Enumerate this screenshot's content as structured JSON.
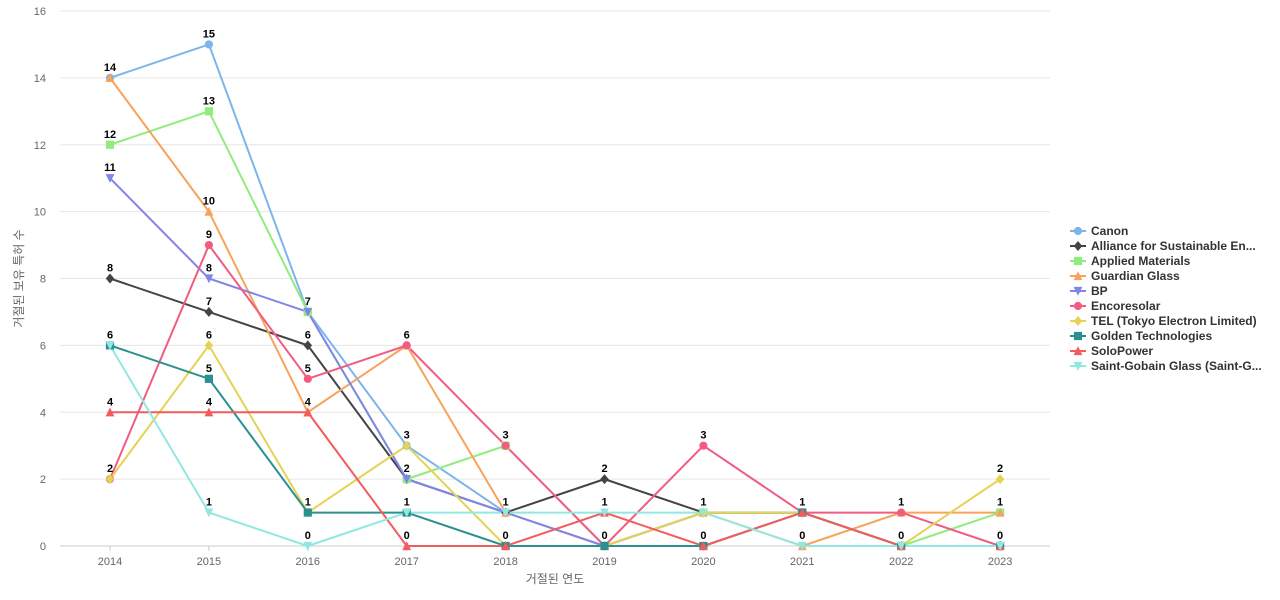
{
  "chart_data": {
    "type": "line",
    "title": "",
    "xlabel": "거절된 연도",
    "ylabel": "거절된 보유 특허 수",
    "x": [
      "2014",
      "2015",
      "2016",
      "2017",
      "2018",
      "2019",
      "2020",
      "2021",
      "2022",
      "2023"
    ],
    "ylim": [
      0,
      16
    ],
    "yticks": [
      0,
      2,
      4,
      6,
      8,
      10,
      12,
      14,
      16
    ],
    "grid": true,
    "legend_position": "right",
    "data_labels": true,
    "series": [
      {
        "name": "Canon",
        "color": "#7cb5ec",
        "marker": "circle",
        "values": [
          14,
          15,
          7,
          3,
          1,
          0,
          1,
          1,
          0,
          0
        ]
      },
      {
        "name": "Alliance for Sustainable En...",
        "color": "#434348",
        "marker": "diamond",
        "values": [
          8,
          7,
          6,
          2,
          1,
          2,
          1,
          1,
          0,
          0
        ]
      },
      {
        "name": "Applied Materials",
        "color": "#90ed7d",
        "marker": "square",
        "values": [
          12,
          13,
          7,
          2,
          3,
          0,
          1,
          1,
          0,
          1
        ]
      },
      {
        "name": "Guardian Glass",
        "color": "#f7a35c",
        "marker": "triangle",
        "values": [
          14,
          10,
          4,
          6,
          1,
          0,
          1,
          0,
          1,
          1
        ]
      },
      {
        "name": "BP",
        "color": "#8085e9",
        "marker": "triangle-down",
        "values": [
          11,
          8,
          7,
          2,
          1,
          0,
          1,
          1,
          0,
          0
        ]
      },
      {
        "name": "Encoresolar",
        "color": "#f15c80",
        "marker": "circle",
        "values": [
          2,
          9,
          5,
          6,
          3,
          0,
          3,
          1,
          1,
          0
        ]
      },
      {
        "name": "TEL (Tokyo Electron Limited)",
        "color": "#e4d354",
        "marker": "diamond",
        "values": [
          2,
          6,
          1,
          3,
          0,
          0,
          1,
          1,
          0,
          2
        ]
      },
      {
        "name": "Golden Technologies",
        "color": "#2b908f",
        "marker": "square",
        "values": [
          6,
          5,
          1,
          1,
          0,
          0,
          0,
          1,
          0,
          0
        ]
      },
      {
        "name": "SoloPower",
        "color": "#f45b5b",
        "marker": "triangle",
        "values": [
          4,
          4,
          4,
          0,
          0,
          1,
          0,
          1,
          0,
          0
        ]
      },
      {
        "name": "Saint-Gobain Glass (Saint-G...",
        "color": "#91e8e1",
        "marker": "triangle-down",
        "values": [
          6,
          1,
          0,
          1,
          1,
          1,
          1,
          0,
          0,
          0
        ]
      }
    ],
    "annotations": [
      {
        "x": "2014",
        "y": 14,
        "text": "14"
      },
      {
        "x": "2014",
        "y": 12,
        "text": "12"
      },
      {
        "x": "2014",
        "y": 11,
        "text": "11"
      },
      {
        "x": "2014",
        "y": 8,
        "text": "8"
      },
      {
        "x": "2014",
        "y": 6,
        "text": "6"
      },
      {
        "x": "2014",
        "y": 4,
        "text": "4"
      },
      {
        "x": "2014",
        "y": 2,
        "text": "2"
      },
      {
        "x": "2015",
        "y": 15,
        "text": "15"
      },
      {
        "x": "2015",
        "y": 13,
        "text": "13"
      },
      {
        "x": "2015",
        "y": 10,
        "text": "10"
      },
      {
        "x": "2015",
        "y": 9,
        "text": "9"
      },
      {
        "x": "2015",
        "y": 8,
        "text": "8"
      },
      {
        "x": "2015",
        "y": 7,
        "text": "7"
      },
      {
        "x": "2015",
        "y": 6,
        "text": "6"
      },
      {
        "x": "2015",
        "y": 5,
        "text": "5"
      },
      {
        "x": "2015",
        "y": 4,
        "text": "4"
      },
      {
        "x": "2015",
        "y": 1,
        "text": "1"
      },
      {
        "x": "2016",
        "y": 7,
        "text": "7"
      },
      {
        "x": "2016",
        "y": 6,
        "text": "6"
      },
      {
        "x": "2016",
        "y": 5,
        "text": "5"
      },
      {
        "x": "2016",
        "y": 4,
        "text": "4"
      },
      {
        "x": "2016",
        "y": 1,
        "text": "1"
      },
      {
        "x": "2016",
        "y": 0,
        "text": "0"
      },
      {
        "x": "2017",
        "y": 6,
        "text": "6"
      },
      {
        "x": "2017",
        "y": 3,
        "text": "3"
      },
      {
        "x": "2017",
        "y": 2,
        "text": "2"
      },
      {
        "x": "2017",
        "y": 1,
        "text": "1"
      },
      {
        "x": "2017",
        "y": 0,
        "text": "0"
      },
      {
        "x": "2018",
        "y": 3,
        "text": "3"
      },
      {
        "x": "2018",
        "y": 1,
        "text": "1"
      },
      {
        "x": "2018",
        "y": 0,
        "text": "0"
      },
      {
        "x": "2019",
        "y": 2,
        "text": "2"
      },
      {
        "x": "2019",
        "y": 1,
        "text": "1"
      },
      {
        "x": "2019",
        "y": 0,
        "text": "0"
      },
      {
        "x": "2020",
        "y": 3,
        "text": "3"
      },
      {
        "x": "2020",
        "y": 1,
        "text": "1"
      },
      {
        "x": "2020",
        "y": 0,
        "text": "0"
      },
      {
        "x": "2021",
        "y": 1,
        "text": "1"
      },
      {
        "x": "2021",
        "y": 0,
        "text": "0"
      },
      {
        "x": "2022",
        "y": 1,
        "text": "1"
      },
      {
        "x": "2022",
        "y": 0,
        "text": "0"
      },
      {
        "x": "2023",
        "y": 2,
        "text": "2"
      },
      {
        "x": "2023",
        "y": 1,
        "text": "1"
      },
      {
        "x": "2023",
        "y": 0,
        "text": "0"
      }
    ]
  }
}
